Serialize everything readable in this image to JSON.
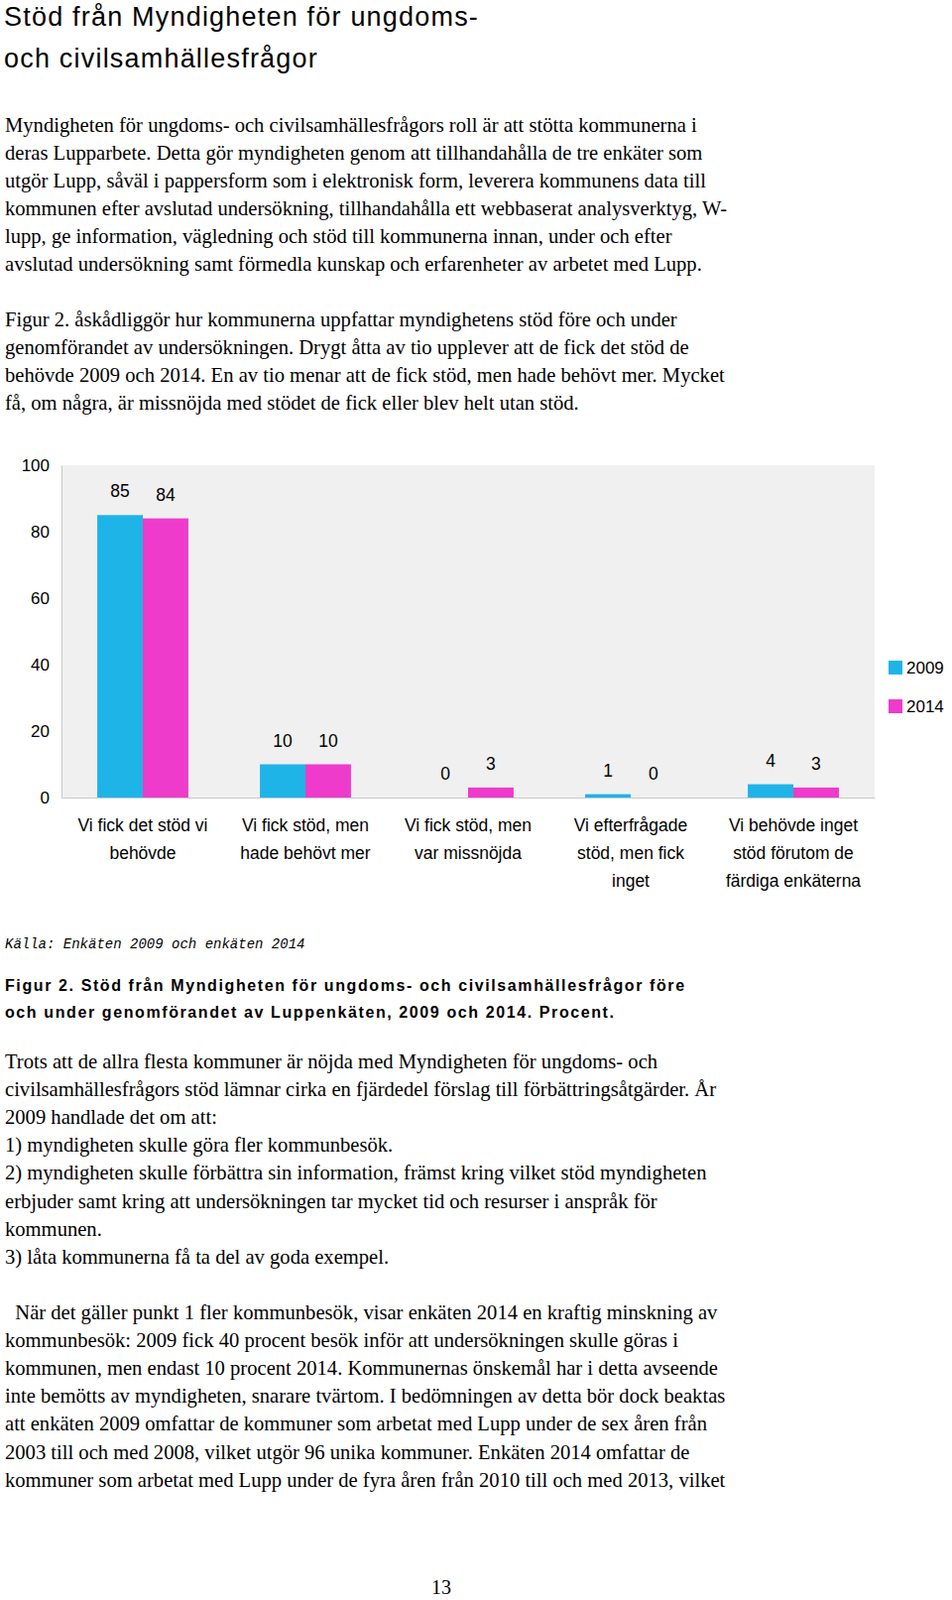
{
  "heading": [
    "Stöd från Myndigheten för ungdoms-",
    "och civilsamhällesfrågor"
  ],
  "paragraphs_before": [
    [
      "Myndigheten för ungdoms- och civilsamhällesfrågors roll är att stötta kommunerna i",
      "deras Lupparbete. Detta gör myndigheten genom att tillhandahålla de tre enkäter som",
      "utgör Lupp, såväl i pappersform som i elektronisk form, leverera kommunens data till",
      "kommunen efter avslutad undersökning, tillhandahålla ett webbaserat analysverktyg, W-",
      "lupp, ge information, vägledning och stöd till kommunerna innan, under och efter",
      "avslutad undersökning samt förmedla kunskap och erfarenheter av arbetet med Lupp."
    ],
    [
      "Figur 2. åskådliggör hur kommunerna uppfattar myndighetens stöd före och under",
      "genomförandet av undersökningen. Drygt åtta av tio upplever att de fick det stöd de",
      "behövde 2009 och 2014. En av tio menar att de fick stöd, men hade behövt mer. Mycket",
      "få, om några, är missnöjda med stödet de fick eller blev helt utan stöd."
    ]
  ],
  "chart_data": {
    "type": "bar",
    "categories": [
      "Vi fick det stöd vi\nbehövde",
      "Vi fick stöd, men\nhade behövt mer",
      "Vi fick stöd, men\nvar missnöjda",
      "Vi efterfrågade\nstöd, men fick\ninget",
      "Vi behövde inget\nstöd förutom de\nfärdiga enkäterna"
    ],
    "series": [
      {
        "name": "2009",
        "color": "#1fb4e8",
        "values": [
          85,
          10,
          0,
          1,
          4
        ]
      },
      {
        "name": "2014",
        "color": "#ee3bcb",
        "values": [
          84,
          10,
          3,
          0,
          3
        ]
      }
    ],
    "ylim": [
      0,
      100
    ],
    "yticks": [
      0,
      20,
      40,
      60,
      80,
      100
    ],
    "grid": false,
    "legend": "right",
    "data_labels": true
  },
  "source": "Källa: Enkäten 2009 och enkäten 2014",
  "caption": [
    "Figur 2. Stöd från Myndigheten för ungdoms- och civilsamhällesfrågor före",
    "och under genomförandet av Luppenkäten, 2009 och 2014. Procent."
  ],
  "paragraphs_after": [
    [
      "Trots att de allra flesta kommuner är nöjda med Myndigheten för ungdoms- och",
      "civilsamhällesfrågors stöd lämnar cirka en fjärdedel förslag till förbättringsåtgärder. År",
      "2009 handlade det om att:",
      "1) myndigheten skulle göra fler kommunbesök.",
      "2) myndigheten skulle förbättra sin information, främst kring vilket stöd myndigheten",
      "erbjuder samt kring att undersökningen tar mycket tid och resurser i anspråk för",
      "kommunen.",
      "3) låta kommunerna få ta del av goda exempel."
    ],
    [
      "  När det gäller punkt 1 fler kommunbesök, visar enkäten 2014 en kraftig minskning av",
      "kommunbesök: 2009 fick 40 procent besök inför att undersökningen skulle göras i",
      "kommunen, men endast 10 procent 2014. Kommunernas önskemål har i detta avseende",
      "inte bemötts av myndigheten, snarare tvärtom. I bedömningen av detta bör dock beaktas",
      "att enkäten 2009 omfattar de kommuner som arbetat med Lupp under de sex åren från",
      "2003 till och med 2008, vilket utgör 96 unika kommuner. Enkäten 2014 omfattar de",
      "kommuner som arbetat med Lupp under de fyra åren från 2010 till och med 2013, vilket"
    ]
  ],
  "page_number": "13"
}
